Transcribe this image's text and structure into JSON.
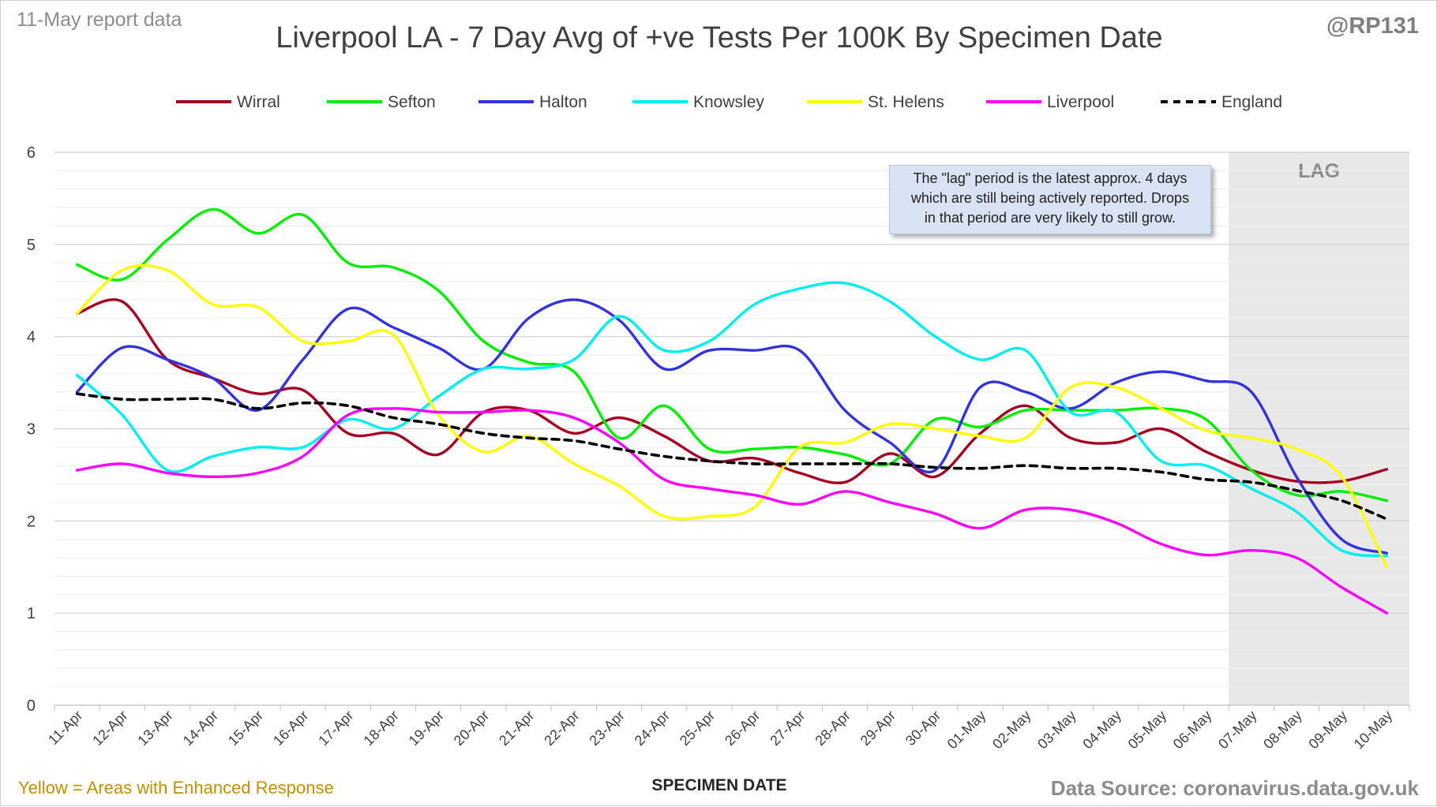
{
  "header": {
    "report_label": "11-May report data",
    "title": "Liverpool LA - 7 Day Avg of +ve Tests Per 100K By Specimen Date",
    "handle": "@RP131"
  },
  "footer": {
    "note": "Yellow = Areas with Enhanced Response",
    "source": "Data Source: coronavirus.data.gov.uk"
  },
  "annotation": {
    "lag_label": "LAG",
    "note_lines": [
      "The \"lag\" period is the latest approx. 4 days",
      "which are still being actively reported.  Drops",
      "in that period are very likely to still grow."
    ]
  },
  "colors": {
    "background": "#ffffff",
    "grid": "#d9d9d9",
    "lag_shade": "#e8e8e8",
    "note_fill": "#dae3f3"
  },
  "chart_data": {
    "type": "line",
    "title": "Liverpool LA - 7 Day Avg of +ve Tests Per 100K By Specimen Date",
    "xlabel": "SPECIMEN DATE",
    "ylabel": "",
    "ylim": [
      0,
      6
    ],
    "yticks": [
      0,
      1,
      2,
      3,
      4,
      5,
      6
    ],
    "grid": true,
    "legend_position": "top",
    "lag_start": "07-May",
    "categories": [
      "11-Apr",
      "12-Apr",
      "13-Apr",
      "14-Apr",
      "15-Apr",
      "16-Apr",
      "17-Apr",
      "18-Apr",
      "19-Apr",
      "20-Apr",
      "21-Apr",
      "22-Apr",
      "23-Apr",
      "24-Apr",
      "25-Apr",
      "26-Apr",
      "27-Apr",
      "28-Apr",
      "29-Apr",
      "30-Apr",
      "01-May",
      "02-May",
      "03-May",
      "04-May",
      "05-May",
      "06-May",
      "07-May",
      "08-May",
      "09-May",
      "10-May"
    ],
    "series": [
      {
        "name": "Wirral",
        "color": "#a50021",
        "dashed": false,
        "values": [
          4.25,
          4.38,
          3.75,
          3.55,
          3.38,
          3.42,
          2.95,
          2.95,
          2.72,
          3.18,
          3.2,
          2.95,
          3.12,
          2.92,
          2.65,
          2.68,
          2.52,
          2.42,
          2.73,
          2.48,
          2.95,
          3.25,
          2.9,
          2.85,
          3.0,
          2.75,
          2.55,
          2.43,
          2.43,
          2.56
        ]
      },
      {
        "name": "Sefton",
        "color": "#00ee00",
        "dashed": false,
        "values": [
          4.78,
          4.62,
          5.05,
          5.38,
          5.12,
          5.32,
          4.8,
          4.75,
          4.5,
          3.95,
          3.72,
          3.62,
          2.9,
          3.25,
          2.78,
          2.78,
          2.8,
          2.72,
          2.62,
          3.1,
          3.02,
          3.2,
          3.2,
          3.2,
          3.22,
          3.1,
          2.55,
          2.28,
          2.32,
          2.22
        ]
      },
      {
        "name": "Halton",
        "color": "#3333dd",
        "dashed": false,
        "values": [
          3.4,
          3.88,
          3.75,
          3.55,
          3.2,
          3.75,
          4.3,
          4.1,
          3.88,
          3.65,
          4.2,
          4.4,
          4.18,
          3.65,
          3.85,
          3.85,
          3.85,
          3.2,
          2.85,
          2.55,
          3.45,
          3.4,
          3.22,
          3.5,
          3.62,
          3.52,
          3.4,
          2.48,
          1.8,
          1.65
        ]
      },
      {
        "name": "Knowsley",
        "color": "#00eeee",
        "dashed": false,
        "values": [
          3.58,
          3.15,
          2.55,
          2.7,
          2.8,
          2.8,
          3.1,
          3.0,
          3.35,
          3.65,
          3.65,
          3.75,
          4.22,
          3.85,
          3.95,
          4.35,
          4.52,
          4.58,
          4.38,
          4.0,
          3.75,
          3.85,
          3.18,
          3.18,
          2.65,
          2.6,
          2.35,
          2.1,
          1.68,
          1.62
        ]
      },
      {
        "name": "St. Helens",
        "color": "#ffff00",
        "dashed": false,
        "values": [
          4.25,
          4.72,
          4.72,
          4.35,
          4.32,
          3.95,
          3.95,
          4.02,
          3.15,
          2.75,
          2.92,
          2.62,
          2.38,
          2.05,
          2.05,
          2.15,
          2.8,
          2.85,
          3.05,
          3.0,
          2.92,
          2.9,
          3.45,
          3.45,
          3.22,
          2.98,
          2.9,
          2.78,
          2.48,
          1.5
        ]
      },
      {
        "name": "Liverpool",
        "color": "#ff00ff",
        "dashed": false,
        "values": [
          2.55,
          2.62,
          2.52,
          2.48,
          2.52,
          2.7,
          3.15,
          3.22,
          3.18,
          3.18,
          3.2,
          3.12,
          2.85,
          2.45,
          2.35,
          2.28,
          2.18,
          2.32,
          2.2,
          2.08,
          1.92,
          2.12,
          2.12,
          1.98,
          1.75,
          1.63,
          1.68,
          1.6,
          1.28,
          1.0
        ]
      },
      {
        "name": "England",
        "color": "#000000",
        "dashed": true,
        "values": [
          3.38,
          3.32,
          3.32,
          3.32,
          3.22,
          3.28,
          3.25,
          3.12,
          3.05,
          2.95,
          2.9,
          2.87,
          2.78,
          2.7,
          2.65,
          2.62,
          2.62,
          2.62,
          2.62,
          2.58,
          2.57,
          2.6,
          2.57,
          2.57,
          2.53,
          2.45,
          2.42,
          2.33,
          2.22,
          2.02
        ]
      }
    ]
  }
}
